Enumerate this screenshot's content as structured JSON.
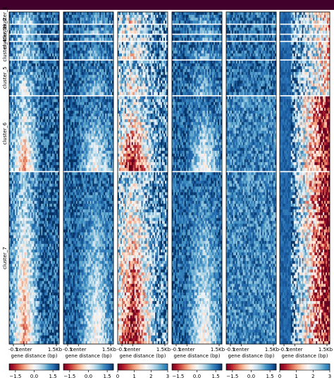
{
  "chart_data": {
    "type": "heatmap",
    "title": "",
    "xlabel": "gene distance (bp)",
    "x_tick_labels": [
      "-0.5",
      "center",
      "1.5Kb"
    ],
    "clusters": [
      {
        "name": "cluster_1",
        "rows": 4
      },
      {
        "name": "cluster_2",
        "rows": 3
      },
      {
        "name": "cluster_3",
        "rows": 2
      },
      {
        "name": "cluster_4",
        "rows": 6
      },
      {
        "name": "cluster_5",
        "rows": 12
      },
      {
        "name": "cluster_6",
        "rows": 26
      },
      {
        "name": "cluster_7",
        "rows": 60
      }
    ],
    "panels": [
      {
        "colorbar": {
          "range": [
            -2,
            2
          ],
          "ticks": [
            "−1.5",
            "0.0",
            "1.5"
          ],
          "tick_values": [
            -1.5,
            0,
            1.5
          ]
        },
        "pattern": "center-hot"
      },
      {
        "colorbar": {
          "range": [
            -2,
            2
          ],
          "ticks": [
            "−1.5",
            "0.0",
            "1.5"
          ],
          "tick_values": [
            -1.5,
            0,
            1.5
          ]
        },
        "pattern": "center-light"
      },
      {
        "colorbar": {
          "range": [
            0,
            3
          ],
          "ticks": [
            "0",
            "1",
            "2",
            "3"
          ],
          "tick_values": [
            0,
            1,
            2,
            3
          ]
        },
        "pattern": "center-red"
      },
      {
        "colorbar": {
          "range": [
            -2,
            2
          ],
          "ticks": [
            "−1.5",
            "0.0",
            "1.5"
          ],
          "tick_values": [
            -1.5,
            0,
            1.5
          ]
        },
        "pattern": "center-light"
      },
      {
        "colorbar": {
          "range": [
            -2,
            2
          ],
          "ticks": [
            "−1.5",
            "0.0",
            "1.5"
          ],
          "tick_values": [
            -1.5,
            0,
            1.5
          ]
        },
        "pattern": "uniform"
      },
      {
        "colorbar": {
          "range": [
            0,
            3
          ],
          "ticks": [
            "0",
            "1",
            "2",
            "3"
          ],
          "tick_values": [
            0,
            1,
            2,
            3
          ]
        },
        "pattern": "right-red"
      }
    ],
    "colormap": [
      "#67001f",
      "#b2182b",
      "#d6604d",
      "#f4a582",
      "#fddbc7",
      "#f7f7f7",
      "#d1e5f0",
      "#92c5de",
      "#4393c3",
      "#2166ac",
      "#053061"
    ],
    "grid": false
  }
}
